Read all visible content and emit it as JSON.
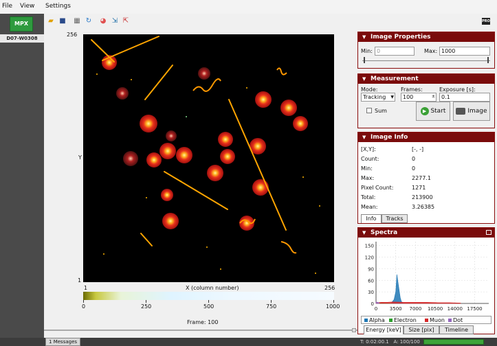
{
  "menu": [
    "File",
    "View",
    "Settings"
  ],
  "device": {
    "icon_label": "MPX",
    "id": "D07-W0308"
  },
  "toolbar": {
    "icons": [
      "folder-icon",
      "save-icon",
      "grid-icon",
      "refresh-icon",
      "color-wheel-icon",
      "arrows-in-icon",
      "arrows-out-icon"
    ],
    "pro_label": "PRO"
  },
  "image": {
    "y_max": "256",
    "y_min": "1",
    "y_label": "Y",
    "x_min": "1",
    "x_max": "256",
    "x_label": "X (column number)",
    "colorbar_ticks": [
      "0",
      "250",
      "500",
      "750",
      "1000"
    ],
    "frame_label": "Frame: 100"
  },
  "image_properties": {
    "title": "Image Properties",
    "min_label": "Min:",
    "min_value": "0",
    "max_label": "Max:",
    "max_value": "1000"
  },
  "measurement": {
    "title": "Measurement",
    "mode_label": "Mode:",
    "mode_value": "Tracking",
    "frames_label": "Frames:",
    "frames_value": "100",
    "exposure_label": "Exposure [s]:",
    "exposure_value": "0.1",
    "sum_label": "Sum",
    "start_label": "Start",
    "image_label": "Image"
  },
  "image_info": {
    "title": "Image Info",
    "rows": [
      {
        "label": "[X,Y]:",
        "value": "[-, -]"
      },
      {
        "label": "Count:",
        "value": "0"
      },
      {
        "label": "Min:",
        "value": "0"
      },
      {
        "label": "Max:",
        "value": "2277.1"
      },
      {
        "label": "Pixel Count:",
        "value": "1271"
      },
      {
        "label": "Total:",
        "value": "213900"
      },
      {
        "label": "Mean:",
        "value": "3.26385"
      }
    ],
    "tabs": [
      "Info",
      "Tracks"
    ]
  },
  "spectra": {
    "title": "Spectra",
    "legend": [
      {
        "name": "Alpha",
        "color": "#1f77b4"
      },
      {
        "name": "Electron",
        "color": "#2ca02c"
      },
      {
        "name": "Muon",
        "color": "#d62728"
      },
      {
        "name": "Dot",
        "color": "#9467bd"
      }
    ],
    "tabs": [
      "Energy [keV]",
      "Size [pix]",
      "Timeline"
    ]
  },
  "chart_data": {
    "type": "area",
    "x_ticks": [
      "0",
      "3500",
      "7000",
      "10500",
      "14000",
      "17500"
    ],
    "y_ticks": [
      "0",
      "30",
      "60",
      "90",
      "120",
      "150"
    ],
    "xlim": [
      0,
      20000
    ],
    "ylim": [
      0,
      160
    ],
    "grid": true,
    "legend_position": "bottom",
    "series": [
      {
        "name": "Alpha",
        "x": [
          2800,
          3200,
          3500,
          3700,
          3900,
          4100,
          4300,
          4500,
          4800
        ],
        "y": [
          3,
          10,
          30,
          75,
          55,
          35,
          15,
          5,
          1
        ]
      },
      {
        "name": "Electron",
        "x": [
          0,
          500,
          1000,
          1500,
          2000,
          3000
        ],
        "y": [
          1,
          2,
          2,
          1,
          1,
          0
        ]
      },
      {
        "name": "Muon",
        "x": [
          0,
          1000,
          2000,
          3000,
          5000,
          7000,
          9000,
          11000,
          13000,
          15000
        ],
        "y": [
          2,
          3,
          3,
          4,
          3,
          3,
          3,
          2,
          2,
          1
        ]
      },
      {
        "name": "Dot",
        "x": [
          0,
          300,
          600
        ],
        "y": [
          4,
          3,
          1
        ]
      }
    ]
  },
  "status": {
    "messages_count": "1",
    "messages_label": "Messages",
    "time": "T: 0:02:00.1",
    "acquisitions": "A: 100/100"
  }
}
